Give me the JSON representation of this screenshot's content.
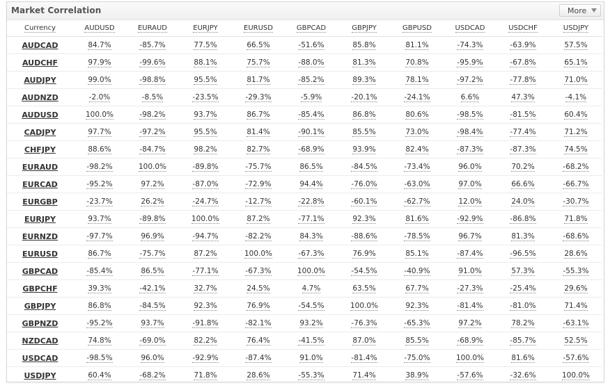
{
  "header": {
    "title": "Market Correlation",
    "more_label": "More",
    "more_icon": "chevron-down-icon"
  },
  "table": {
    "columns": [
      "Currency",
      "AUDUSD",
      "EURAUD",
      "EURJPY",
      "EURUSD",
      "GBPCAD",
      "GBPJPY",
      "GBPUSD",
      "USDCAD",
      "USDCHF",
      "USDJPY"
    ],
    "rows": [
      {
        "symbol": "AUDCAD",
        "values": [
          "84.7%",
          "-85.7%",
          "77.5%",
          "66.5%",
          "-51.6%",
          "85.8%",
          "81.1%",
          "-74.3%",
          "-63.9%",
          "57.5%"
        ]
      },
      {
        "symbol": "AUDCHF",
        "values": [
          "97.9%",
          "-99.6%",
          "88.1%",
          "75.7%",
          "-88.0%",
          "81.3%",
          "70.8%",
          "-95.9%",
          "-67.8%",
          "65.1%"
        ]
      },
      {
        "symbol": "AUDJPY",
        "values": [
          "99.0%",
          "-98.8%",
          "95.5%",
          "81.7%",
          "-85.2%",
          "89.3%",
          "78.1%",
          "-97.2%",
          "-77.8%",
          "71.0%"
        ]
      },
      {
        "symbol": "AUDNZD",
        "values": [
          "-2.0%",
          "-8.5%",
          "-23.5%",
          "-29.3%",
          "-5.9%",
          "-20.1%",
          "-24.1%",
          "6.6%",
          "47.3%",
          "-4.1%"
        ]
      },
      {
        "symbol": "AUDUSD",
        "values": [
          "100.0%",
          "-98.2%",
          "93.7%",
          "86.7%",
          "-85.4%",
          "86.8%",
          "80.6%",
          "-98.5%",
          "-81.5%",
          "60.4%"
        ]
      },
      {
        "symbol": "CADJPY",
        "values": [
          "97.7%",
          "-97.2%",
          "95.5%",
          "81.4%",
          "-90.1%",
          "85.5%",
          "73.0%",
          "-98.4%",
          "-77.4%",
          "71.2%"
        ]
      },
      {
        "symbol": "CHFJPY",
        "values": [
          "88.6%",
          "-84.7%",
          "98.2%",
          "82.7%",
          "-68.9%",
          "93.9%",
          "82.4%",
          "-87.3%",
          "-87.3%",
          "74.5%"
        ]
      },
      {
        "symbol": "EURAUD",
        "values": [
          "-98.2%",
          "100.0%",
          "-89.8%",
          "-75.7%",
          "86.5%",
          "-84.5%",
          "-73.4%",
          "96.0%",
          "70.2%",
          "-68.2%"
        ]
      },
      {
        "symbol": "EURCAD",
        "values": [
          "-95.2%",
          "97.2%",
          "-87.0%",
          "-72.9%",
          "94.4%",
          "-76.0%",
          "-63.0%",
          "97.0%",
          "66.6%",
          "-66.7%"
        ]
      },
      {
        "symbol": "EURGBP",
        "values": [
          "-23.7%",
          "26.2%",
          "-24.7%",
          "-12.7%",
          "-22.8%",
          "-60.1%",
          "-62.7%",
          "12.0%",
          "24.0%",
          "-30.7%"
        ]
      },
      {
        "symbol": "EURJPY",
        "values": [
          "93.7%",
          "-89.8%",
          "100.0%",
          "87.2%",
          "-77.1%",
          "92.3%",
          "81.6%",
          "-92.9%",
          "-86.8%",
          "71.8%"
        ]
      },
      {
        "symbol": "EURNZD",
        "values": [
          "-97.7%",
          "96.9%",
          "-94.7%",
          "-82.2%",
          "84.3%",
          "-88.6%",
          "-78.5%",
          "96.7%",
          "81.3%",
          "-68.6%"
        ]
      },
      {
        "symbol": "EURUSD",
        "values": [
          "86.7%",
          "-75.7%",
          "87.2%",
          "100.0%",
          "-67.3%",
          "76.9%",
          "85.1%",
          "-87.4%",
          "-96.5%",
          "28.6%"
        ]
      },
      {
        "symbol": "GBPCAD",
        "values": [
          "-85.4%",
          "86.5%",
          "-77.1%",
          "-67.3%",
          "100.0%",
          "-54.5%",
          "-40.9%",
          "91.0%",
          "57.3%",
          "-55.3%"
        ]
      },
      {
        "symbol": "GBPCHF",
        "values": [
          "39.3%",
          "-42.1%",
          "32.7%",
          "24.5%",
          "4.7%",
          "63.5%",
          "67.7%",
          "-27.3%",
          "-25.4%",
          "29.6%"
        ]
      },
      {
        "symbol": "GBPJPY",
        "values": [
          "86.8%",
          "-84.5%",
          "92.3%",
          "76.9%",
          "-54.5%",
          "100.0%",
          "92.3%",
          "-81.4%",
          "-81.0%",
          "71.4%"
        ]
      },
      {
        "symbol": "GBPNZD",
        "values": [
          "-95.2%",
          "93.7%",
          "-91.8%",
          "-82.1%",
          "93.2%",
          "-76.3%",
          "-65.3%",
          "97.2%",
          "78.2%",
          "-63.1%"
        ]
      },
      {
        "symbol": "NZDCAD",
        "values": [
          "74.8%",
          "-69.0%",
          "82.2%",
          "76.4%",
          "-41.5%",
          "87.0%",
          "85.5%",
          "-68.9%",
          "-85.7%",
          "52.5%"
        ]
      },
      {
        "symbol": "USDCAD",
        "values": [
          "-98.5%",
          "96.0%",
          "-92.9%",
          "-87.4%",
          "91.0%",
          "-81.4%",
          "-75.0%",
          "100.0%",
          "81.6%",
          "-57.6%"
        ]
      },
      {
        "symbol": "USDJPY",
        "values": [
          "60.4%",
          "-68.2%",
          "71.8%",
          "28.6%",
          "-55.3%",
          "71.4%",
          "38.9%",
          "-57.6%",
          "-32.6%",
          "100.0%"
        ]
      }
    ]
  }
}
